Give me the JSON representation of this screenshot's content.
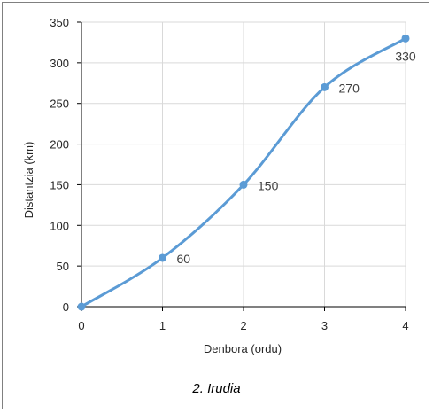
{
  "caption": "2. Irudia",
  "chart_data": {
    "type": "line",
    "title": "",
    "xlabel": "Denbora (ordu)",
    "ylabel": "Distantzia (km)",
    "x": [
      0,
      1,
      2,
      3,
      4
    ],
    "y": [
      0,
      60,
      150,
      270,
      330
    ],
    "data_labels": [
      "",
      "60",
      "150",
      "270",
      "330"
    ],
    "xlim": [
      0,
      4
    ],
    "ylim": [
      0,
      350
    ],
    "xticks": [
      "0",
      "1",
      "2",
      "3",
      "4"
    ],
    "yticks": [
      "0",
      "50",
      "100",
      "150",
      "200",
      "250",
      "300",
      "350"
    ],
    "grid": true,
    "smooth": true,
    "line_color": "#5b9bd5",
    "grid_color": "#d9d9d9",
    "axis_color": "#000000"
  }
}
